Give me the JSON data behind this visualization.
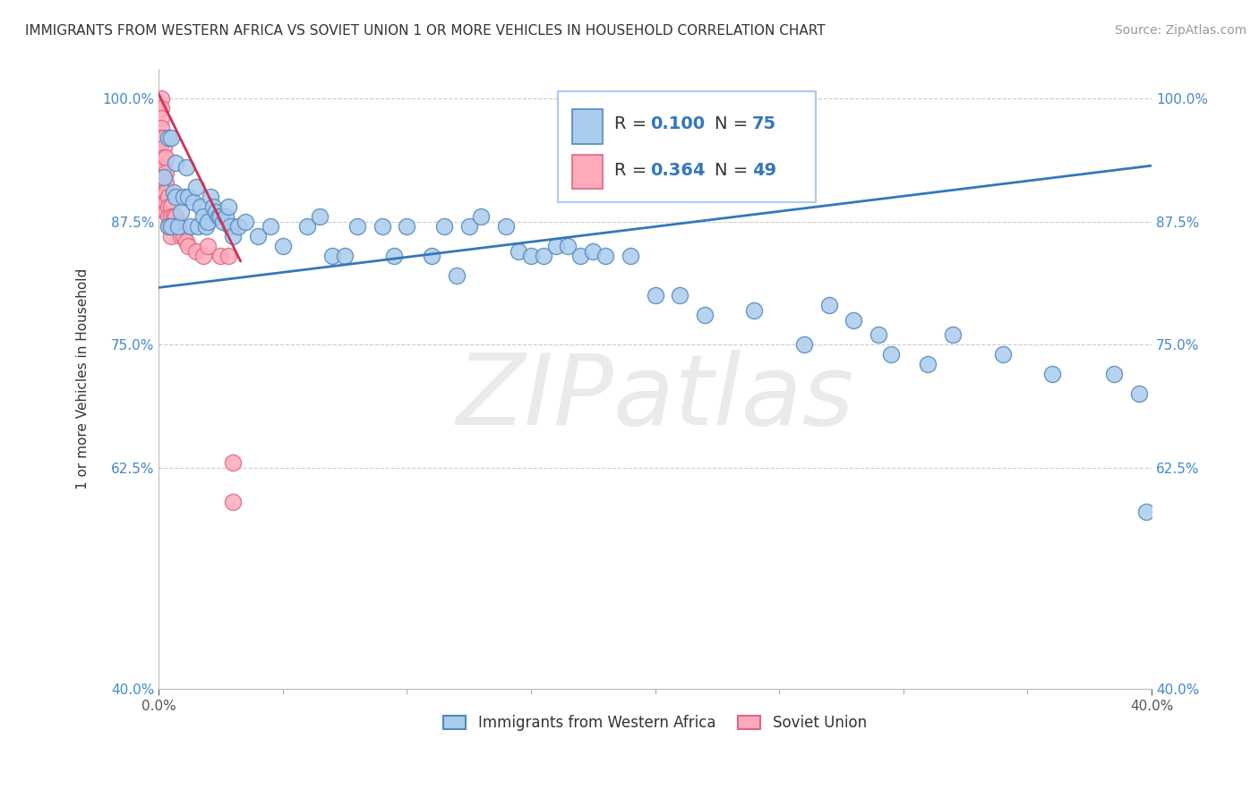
{
  "title": "IMMIGRANTS FROM WESTERN AFRICA VS SOVIET UNION 1 OR MORE VEHICLES IN HOUSEHOLD CORRELATION CHART",
  "source": "Source: ZipAtlas.com",
  "ylabel": "1 or more Vehicles in Household",
  "xlim": [
    0.0,
    0.4
  ],
  "ylim": [
    0.4,
    1.03
  ],
  "ytick_labels": [
    "40.0%",
    "62.5%",
    "75.0%",
    "87.5%",
    "100.0%"
  ],
  "ytick_vals": [
    0.4,
    0.625,
    0.75,
    0.875,
    1.0
  ],
  "grid_color": "#cccccc",
  "background_color": "#ffffff",
  "watermark": "ZIPatlas",
  "series1_color": "#aaccee",
  "series1_edge": "#5588bb",
  "series2_color": "#ffaabb",
  "series2_edge": "#dd6688",
  "trendline1_color": "#3377bb",
  "trendline2_color": "#cc3355",
  "R1": 0.1,
  "N1": 75,
  "R2": 0.364,
  "N2": 49,
  "legend1_label": "Immigrants from Western Africa",
  "legend2_label": "Soviet Union",
  "trendline1_x": [
    0.0,
    0.4
  ],
  "trendline1_y": [
    0.808,
    0.932
  ],
  "trendline2_x": [
    0.0,
    0.033
  ],
  "trendline2_y": [
    1.005,
    0.835
  ],
  "series1_x": [
    0.002,
    0.004,
    0.004,
    0.005,
    0.005,
    0.006,
    0.007,
    0.007,
    0.008,
    0.009,
    0.01,
    0.011,
    0.012,
    0.013,
    0.014,
    0.015,
    0.016,
    0.017,
    0.018,
    0.019,
    0.02,
    0.021,
    0.022,
    0.023,
    0.024,
    0.025,
    0.026,
    0.027,
    0.028,
    0.029,
    0.03,
    0.032,
    0.035,
    0.04,
    0.045,
    0.05,
    0.06,
    0.065,
    0.07,
    0.075,
    0.08,
    0.09,
    0.095,
    0.1,
    0.11,
    0.115,
    0.12,
    0.125,
    0.13,
    0.14,
    0.145,
    0.15,
    0.155,
    0.16,
    0.165,
    0.17,
    0.175,
    0.18,
    0.19,
    0.2,
    0.21,
    0.22,
    0.24,
    0.26,
    0.27,
    0.28,
    0.29,
    0.295,
    0.31,
    0.32,
    0.34,
    0.36,
    0.385,
    0.395,
    0.398
  ],
  "series1_y": [
    0.92,
    0.96,
    0.87,
    0.96,
    0.87,
    0.905,
    0.935,
    0.9,
    0.87,
    0.885,
    0.9,
    0.93,
    0.9,
    0.87,
    0.895,
    0.91,
    0.87,
    0.89,
    0.88,
    0.87,
    0.875,
    0.9,
    0.89,
    0.885,
    0.88,
    0.88,
    0.875,
    0.88,
    0.89,
    0.87,
    0.86,
    0.87,
    0.875,
    0.86,
    0.87,
    0.85,
    0.87,
    0.88,
    0.84,
    0.84,
    0.87,
    0.87,
    0.84,
    0.87,
    0.84,
    0.87,
    0.82,
    0.87,
    0.88,
    0.87,
    0.845,
    0.84,
    0.84,
    0.85,
    0.85,
    0.84,
    0.845,
    0.84,
    0.84,
    0.8,
    0.8,
    0.78,
    0.785,
    0.75,
    0.79,
    0.775,
    0.76,
    0.74,
    0.73,
    0.76,
    0.74,
    0.72,
    0.72,
    0.7,
    0.58
  ],
  "series2_x": [
    0.001,
    0.001,
    0.001,
    0.001,
    0.001,
    0.001,
    0.001,
    0.001,
    0.001,
    0.001,
    0.002,
    0.002,
    0.002,
    0.002,
    0.002,
    0.002,
    0.002,
    0.002,
    0.003,
    0.003,
    0.003,
    0.003,
    0.003,
    0.003,
    0.004,
    0.004,
    0.004,
    0.004,
    0.005,
    0.005,
    0.005,
    0.005,
    0.006,
    0.006,
    0.007,
    0.007,
    0.008,
    0.009,
    0.01,
    0.011,
    0.012,
    0.015,
    0.018,
    0.02,
    0.025,
    0.028,
    0.03,
    0.03,
    0.03
  ],
  "series2_y": [
    1.0,
    0.99,
    0.98,
    0.97,
    0.96,
    0.955,
    0.945,
    0.935,
    0.925,
    0.915,
    0.96,
    0.95,
    0.94,
    0.93,
    0.92,
    0.91,
    0.9,
    0.89,
    0.94,
    0.925,
    0.915,
    0.905,
    0.895,
    0.885,
    0.9,
    0.89,
    0.88,
    0.87,
    0.89,
    0.88,
    0.87,
    0.86,
    0.88,
    0.87,
    0.88,
    0.87,
    0.87,
    0.86,
    0.86,
    0.855,
    0.85,
    0.845,
    0.84,
    0.85,
    0.84,
    0.84,
    0.87,
    0.63,
    0.59
  ]
}
